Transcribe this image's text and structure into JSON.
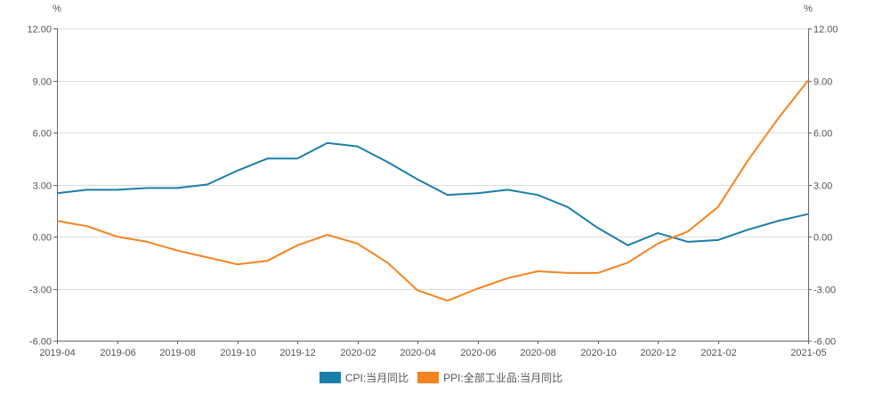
{
  "chart_data": {
    "type": "line",
    "title": "",
    "xlabel": "",
    "ylabel_left": "%",
    "ylabel_right": "%",
    "ylim": [
      -6,
      12
    ],
    "yticks": [
      "12.00",
      "9.00",
      "6.00",
      "3.00",
      "0.00",
      "-3.00",
      "-6.00"
    ],
    "ytick_values": [
      12,
      9,
      6,
      3,
      0,
      -3,
      -6
    ],
    "x": [
      "2019-04",
      "2019-05",
      "2019-06",
      "2019-07",
      "2019-08",
      "2019-09",
      "2019-10",
      "2019-11",
      "2019-12",
      "2020-01",
      "2020-02",
      "2020-03",
      "2020-04",
      "2020-05",
      "2020-06",
      "2020-07",
      "2020-08",
      "2020-09",
      "2020-10",
      "2020-11",
      "2020-12",
      "2021-01",
      "2021-02",
      "2021-03",
      "2021-04",
      "2021-05"
    ],
    "xtick_labels": [
      {
        "label": "2019-04",
        "index": 0
      },
      {
        "label": "2019-06",
        "index": 2
      },
      {
        "label": "2019-08",
        "index": 4
      },
      {
        "label": "2019-10",
        "index": 6
      },
      {
        "label": "2019-12",
        "index": 8
      },
      {
        "label": "2020-02",
        "index": 10
      },
      {
        "label": "2020-04",
        "index": 12
      },
      {
        "label": "2020-06",
        "index": 14
      },
      {
        "label": "2020-08",
        "index": 16
      },
      {
        "label": "2020-10",
        "index": 18
      },
      {
        "label": "2020-12",
        "index": 20
      },
      {
        "label": "2021-02",
        "index": 22
      },
      {
        "label": "2021-05",
        "index": 25
      }
    ],
    "grid": true,
    "legend_position": "bottom",
    "series": [
      {
        "name": "CPI:当月同比",
        "color": "#1a7fa8",
        "values": [
          2.5,
          2.7,
          2.7,
          2.8,
          2.8,
          3.0,
          3.8,
          4.5,
          4.5,
          5.4,
          5.2,
          4.3,
          3.3,
          2.4,
          2.5,
          2.7,
          2.4,
          1.7,
          0.5,
          -0.5,
          0.2,
          -0.3,
          -0.2,
          0.4,
          0.9,
          1.3
        ]
      },
      {
        "name": "PPI:全部工业品:当月同比",
        "color": "#f5841f",
        "values": [
          0.9,
          0.6,
          0.0,
          -0.3,
          -0.8,
          -1.2,
          -1.6,
          -1.4,
          -0.5,
          0.1,
          -0.4,
          -1.5,
          -3.1,
          -3.7,
          -3.0,
          -2.4,
          -2.0,
          -2.1,
          -2.1,
          -1.5,
          -0.4,
          0.3,
          1.7,
          4.4,
          6.8,
          9.0
        ]
      }
    ]
  },
  "legend": {
    "items": [
      {
        "label": "CPI:当月同比",
        "color": "#1a7fa8"
      },
      {
        "label": "PPI:全部工业品:当月同比",
        "color": "#f5841f"
      }
    ]
  }
}
